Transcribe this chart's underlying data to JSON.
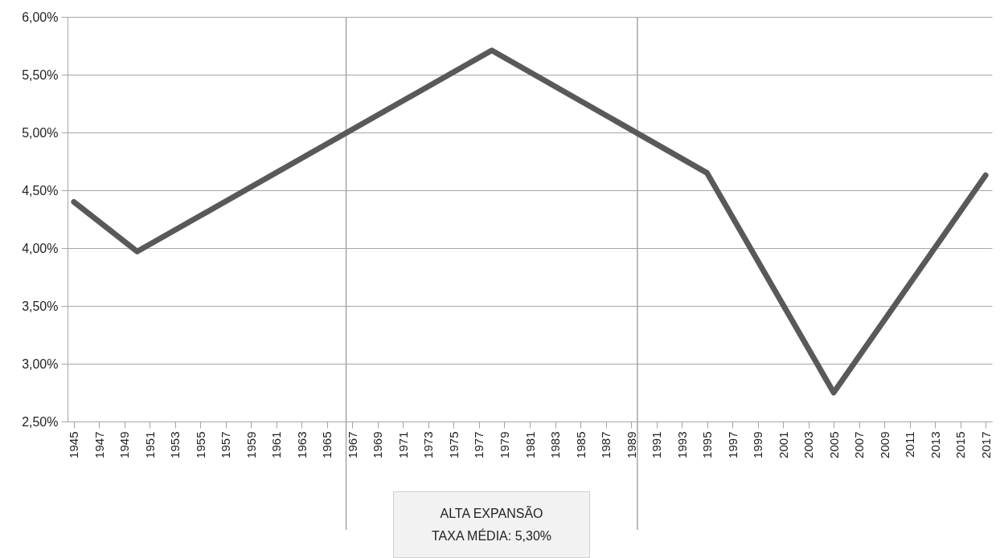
{
  "chart_data": {
    "type": "line",
    "x": [
      1945,
      1950,
      1978,
      1995,
      2005,
      2017
    ],
    "series": [
      {
        "color": "#595959",
        "values": [
          4.4,
          3.97,
          5.71,
          4.65,
          2.75,
          4.63
        ]
      }
    ],
    "xlim": [
      1944.5,
      2017.5
    ],
    "xticks": [
      1945,
      1947,
      1949,
      1951,
      1953,
      1955,
      1957,
      1959,
      1961,
      1963,
      1965,
      1967,
      1969,
      1971,
      1973,
      1975,
      1977,
      1979,
      1981,
      1983,
      1985,
      1987,
      1989,
      1991,
      1993,
      1995,
      1997,
      1999,
      2001,
      2003,
      2005,
      2007,
      2009,
      2011,
      2013,
      2015,
      2017
    ],
    "ylim": [
      2.5,
      6.0
    ],
    "yticks": [
      {
        "value": 2.5,
        "label": "2,50%"
      },
      {
        "value": 3.0,
        "label": "3,00%"
      },
      {
        "value": 3.5,
        "label": "3,50%"
      },
      {
        "value": 4.0,
        "label": "4,00%"
      },
      {
        "value": 4.5,
        "label": "4,50%"
      },
      {
        "value": 5.0,
        "label": "5,00%"
      },
      {
        "value": 5.5,
        "label": "5,50%"
      },
      {
        "value": 6.0,
        "label": "6,00%"
      }
    ],
    "grid": "y",
    "marker": "none",
    "line_style": "solid",
    "ref_lines": [
      {
        "axis": "x",
        "value": 1966.5,
        "color": "#a6a6a6"
      },
      {
        "axis": "x",
        "value": 1989.5,
        "color": "#a6a6a6"
      }
    ],
    "annotations": [
      "ALTA EXPANSÃO\nTAXA MÉDIA: 5,30%"
    ]
  }
}
